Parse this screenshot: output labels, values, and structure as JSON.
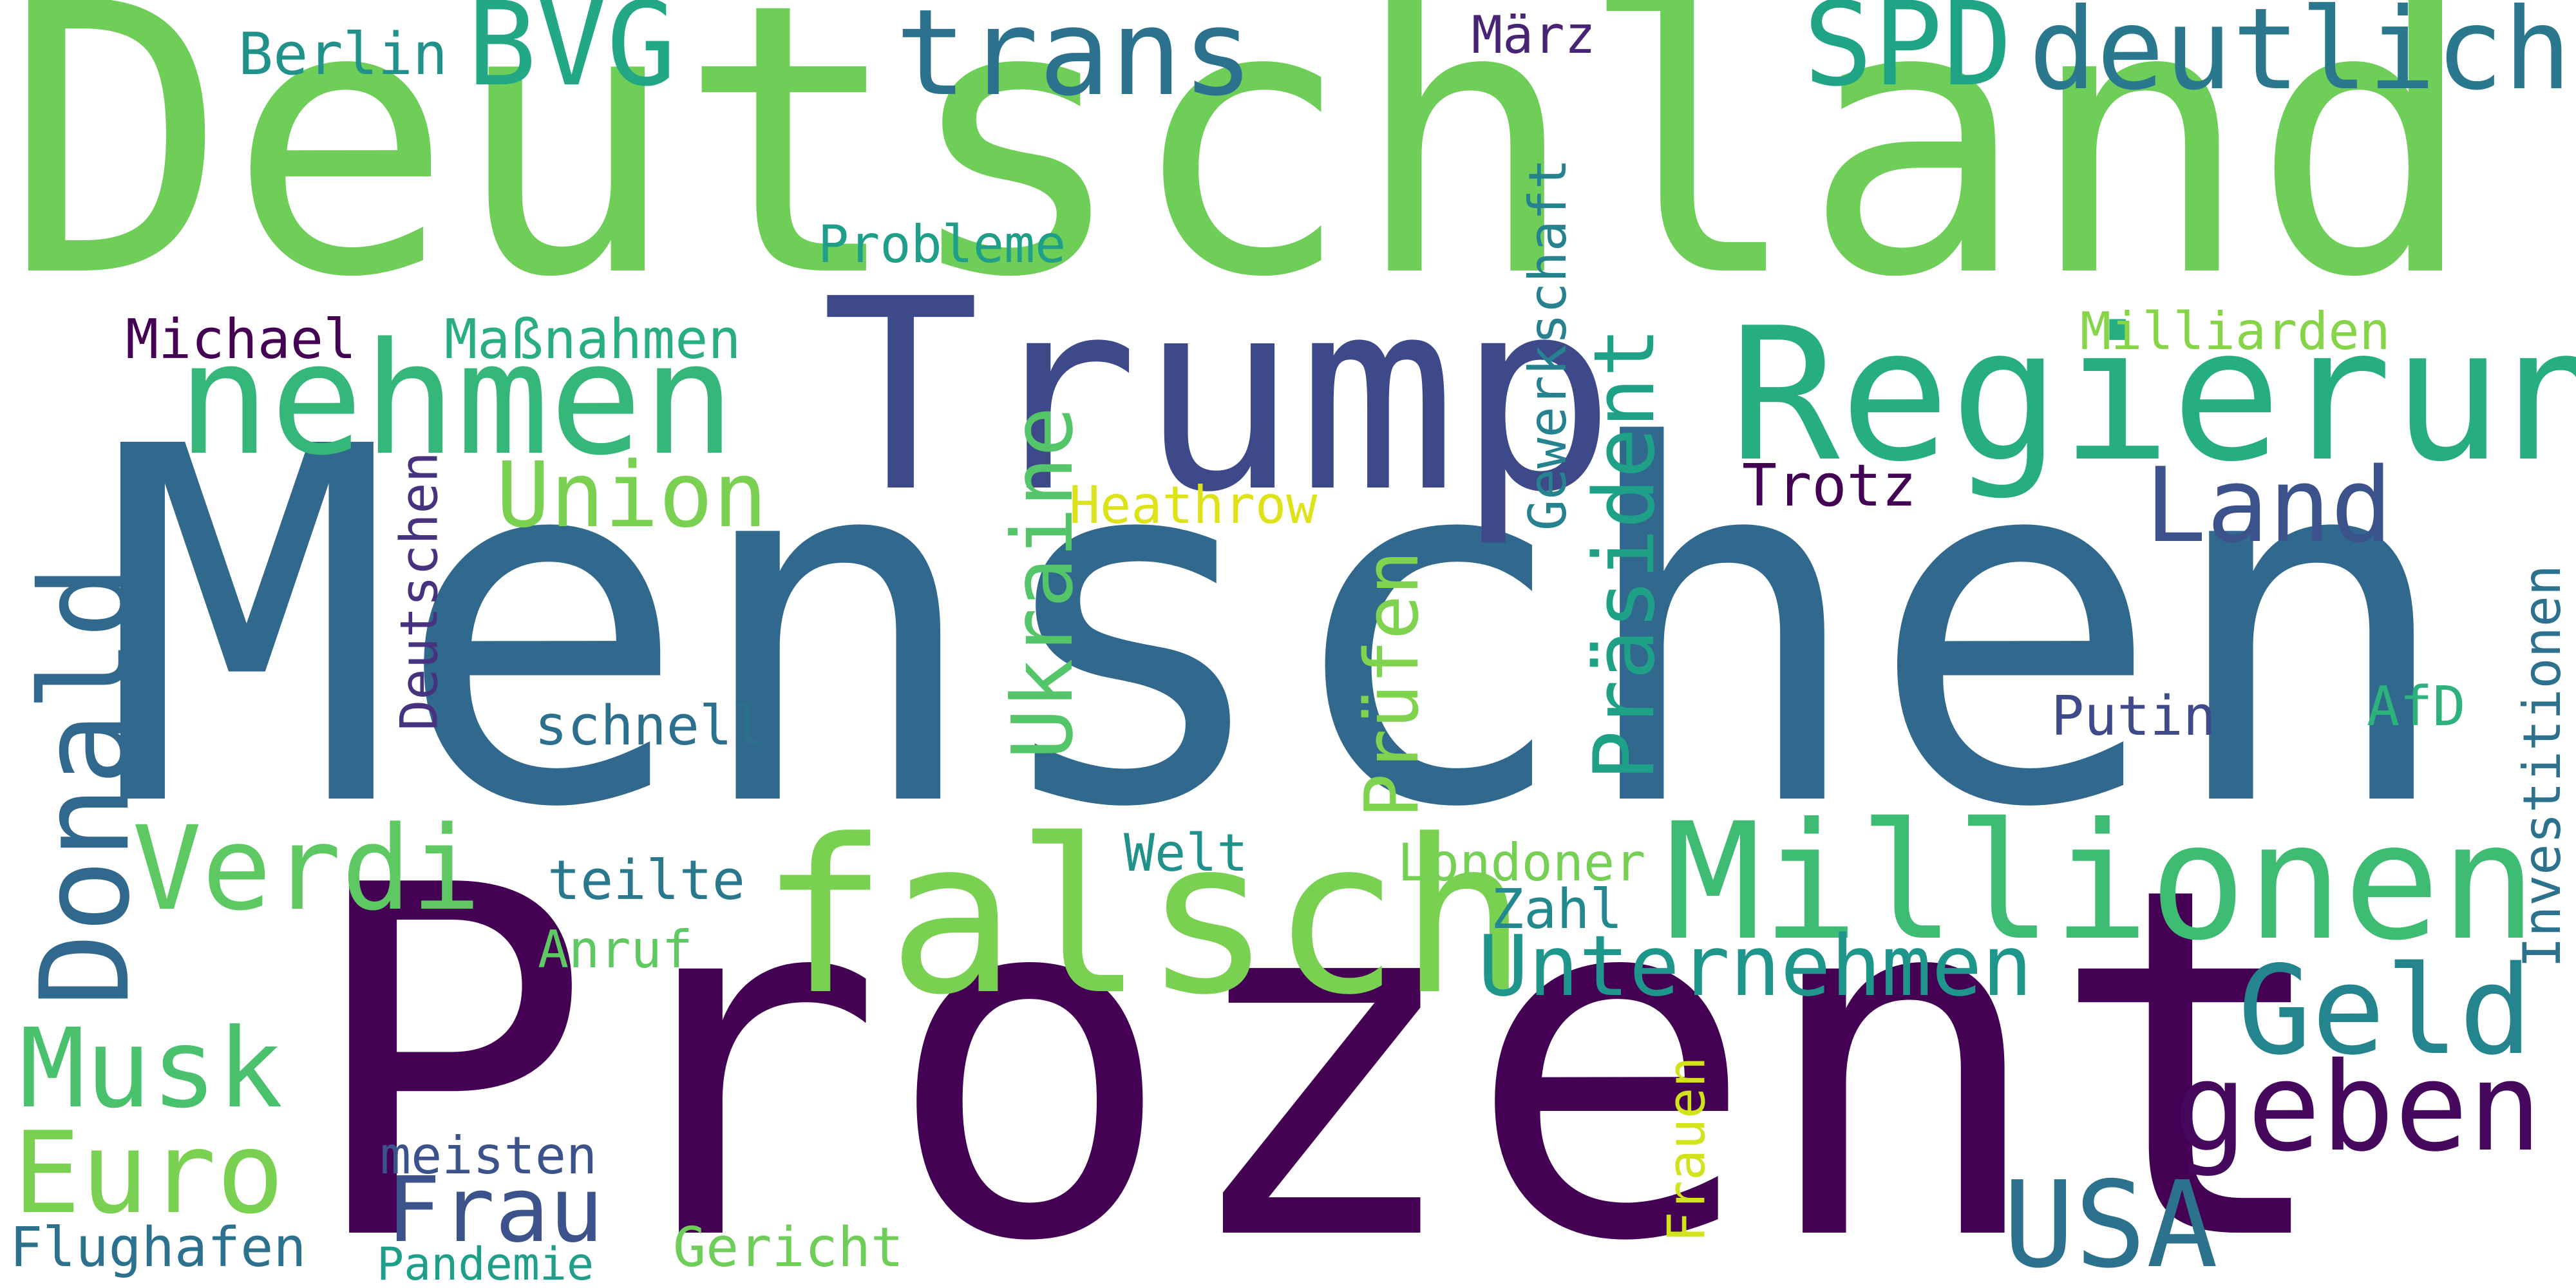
{
  "words": {
    "deutschland": {
      "text": "Deutschland",
      "color": "#6ece58"
    },
    "menschen": {
      "text": "Menschen",
      "color": "#31688e"
    },
    "prozent": {
      "text": "Prozent",
      "color": "#440154"
    },
    "trump": {
      "text": "Trump",
      "color": "#3e4989"
    },
    "regierung": {
      "text": "Regierung",
      "color": "#26ad81"
    },
    "nehmen": {
      "text": "nehmen",
      "color": "#35b779"
    },
    "falsch": {
      "text": "falsch",
      "color": "#7ad151"
    },
    "millionen": {
      "text": "Millionen",
      "color": "#3fbc73"
    },
    "bvg": {
      "text": "BVG",
      "color": "#22a884"
    },
    "trans": {
      "text": "trans",
      "color": "#2c728e"
    },
    "spd": {
      "text": "SPD",
      "color": "#20a486"
    },
    "deutlich": {
      "text": "deutlich",
      "color": "#2a788e"
    },
    "berlin": {
      "text": "Berlin",
      "color": "#21918c"
    },
    "maerz": {
      "text": "März",
      "color": "#482475"
    },
    "probleme": {
      "text": "Probleme",
      "color": "#1f9e89"
    },
    "michael": {
      "text": "Michael",
      "color": "#440154"
    },
    "massnahmen": {
      "text": "Maßnahmen",
      "color": "#29af7f"
    },
    "milliarden": {
      "text": "Milliarden",
      "color": "#86d549"
    },
    "gewerkschaft": {
      "text": "Gewerkschaft",
      "color": "#26828e"
    },
    "union": {
      "text": "Union",
      "color": "#7ad151"
    },
    "land": {
      "text": "Land",
      "color": "#3b528b"
    },
    "trotz": {
      "text": "Trotz",
      "color": "#440154"
    },
    "heathrow": {
      "text": "Heathrow",
      "color": "#dde318"
    },
    "donald": {
      "text": "Donald",
      "color": "#31688e"
    },
    "deutschen": {
      "text": "Deutschen",
      "color": "#46327e"
    },
    "ukraine": {
      "text": "Ukraine",
      "color": "#54c568"
    },
    "pruefen": {
      "text": "Prüfen",
      "color": "#7fd34e"
    },
    "praesident": {
      "text": "Präsident",
      "color": "#1fa187"
    },
    "investitionen": {
      "text": "Investitionen",
      "color": "#2c728e"
    },
    "schnell": {
      "text": "schnell",
      "color": "#2d708e"
    },
    "putin": {
      "text": "Putin",
      "color": "#3e4a89"
    },
    "afd": {
      "text": "AfD",
      "color": "#2db27d"
    },
    "verdi": {
      "text": "Verdi",
      "color": "#5ec962"
    },
    "teilte": {
      "text": "teilte",
      "color": "#2a788e"
    },
    "welt": {
      "text": "Welt",
      "color": "#21918c"
    },
    "londoner": {
      "text": "Londoner",
      "color": "#75d054"
    },
    "zahl": {
      "text": "Zahl",
      "color": "#23898e"
    },
    "unternehmen": {
      "text": "Unternehmen",
      "color": "#1f968b"
    },
    "anruf": {
      "text": "Anruf",
      "color": "#5ec962"
    },
    "geld": {
      "text": "Geld",
      "color": "#25858e"
    },
    "musk": {
      "text": "Musk",
      "color": "#4ac16d"
    },
    "geben": {
      "text": "geben",
      "color": "#46085c"
    },
    "euro": {
      "text": "Euro",
      "color": "#7ad151"
    },
    "meisten": {
      "text": "meisten",
      "color": "#3b528b"
    },
    "frau": {
      "text": "Frau",
      "color": "#3b528b"
    },
    "frauen": {
      "text": "Frauen",
      "color": "#d2e21b"
    },
    "usa": {
      "text": "USA",
      "color": "#2c728e"
    },
    "flughafen": {
      "text": "Flughafen",
      "color": "#2c728e"
    },
    "pandemie": {
      "text": "Pandemie",
      "color": "#1f9e89"
    },
    "gericht": {
      "text": "Gericht",
      "color": "#6ece58"
    }
  }
}
